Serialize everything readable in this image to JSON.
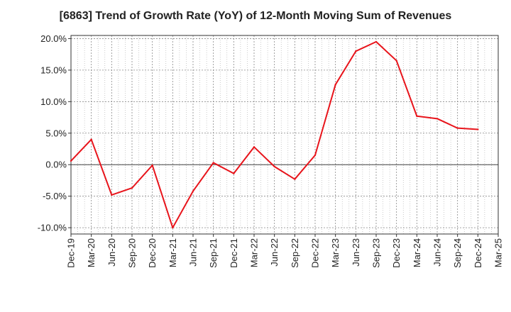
{
  "chart_data": {
    "type": "line",
    "title": "[6863]  Trend of Growth Rate (YoY) of 12-Month Moving Sum of Revenues",
    "xlabel": "",
    "ylabel": "",
    "x_tick_labels": [
      "Dec-19",
      "Mar-20",
      "Jun-20",
      "Sep-20",
      "Dec-20",
      "Mar-21",
      "Jun-21",
      "Sep-21",
      "Dec-21",
      "Mar-22",
      "Jun-22",
      "Sep-22",
      "Dec-22",
      "Mar-23",
      "Jun-23",
      "Sep-23",
      "Dec-23",
      "Mar-24",
      "Jun-24",
      "Sep-24",
      "Dec-24",
      "Mar-25"
    ],
    "y_tick_labels": [
      "20.0%",
      "15.0%",
      "10.0%",
      "5.0%",
      "0.0%",
      "-5.0%",
      "-10.0%"
    ],
    "y_ticks": [
      20,
      15,
      10,
      5,
      0,
      -5,
      -10
    ],
    "ylim": [
      -11,
      20.5
    ],
    "grid": true,
    "unit": "%",
    "color": "#e8141b",
    "series": [
      {
        "name": "",
        "x": [
          "Dec-19",
          "Mar-20",
          "Jun-20",
          "Sep-20",
          "Dec-20",
          "Mar-21",
          "Jun-21",
          "Sep-21",
          "Dec-21",
          "Mar-22",
          "Jun-22",
          "Sep-22",
          "Dec-22",
          "Mar-23",
          "Jun-23",
          "Sep-23",
          "Dec-23",
          "Mar-24",
          "Jun-24",
          "Sep-24",
          "Dec-24"
        ],
        "values": [
          0.6,
          4.0,
          -4.8,
          -3.7,
          -0.1,
          -10.0,
          -4.2,
          0.3,
          -1.4,
          2.8,
          -0.3,
          -2.3,
          1.5,
          12.7,
          18.0,
          19.5,
          16.5,
          7.7,
          7.3,
          5.8,
          5.6
        ]
      }
    ]
  }
}
